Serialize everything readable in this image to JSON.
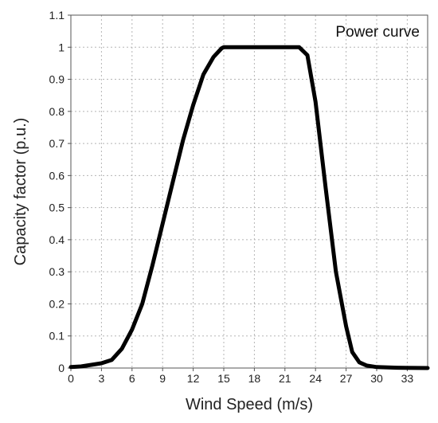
{
  "chart_data": {
    "type": "line",
    "title": "",
    "xlabel": "Wind Speed (m/s)",
    "ylabel": "Capacity factor (p.u.)",
    "xlim": [
      0,
      35
    ],
    "ylim": [
      0,
      1.1
    ],
    "xticks": [
      0,
      3,
      6,
      9,
      12,
      15,
      18,
      21,
      24,
      27,
      30,
      33
    ],
    "yticks": [
      0,
      0.1,
      0.2,
      0.3,
      0.4,
      0.5,
      0.6,
      0.7,
      0.8,
      0.9,
      1,
      1.1
    ],
    "grid": true,
    "legend_position": "top-right",
    "series": [
      {
        "name": "Power curve",
        "color": "#000000",
        "x": [
          0,
          1,
          2,
          3,
          4,
          5,
          6,
          7,
          8,
          9,
          10,
          11,
          12,
          13,
          14,
          14.8,
          15,
          18,
          21,
          22.4,
          23.2,
          24,
          25,
          26,
          27,
          27.6,
          28.3,
          29,
          30,
          32,
          35
        ],
        "y": [
          0.003,
          0.005,
          0.01,
          0.015,
          0.025,
          0.06,
          0.12,
          0.2,
          0.32,
          0.45,
          0.58,
          0.71,
          0.82,
          0.915,
          0.97,
          0.997,
          1.0,
          1.0,
          1.0,
          1.0,
          0.975,
          0.83,
          0.56,
          0.3,
          0.13,
          0.05,
          0.018,
          0.008,
          0.003,
          0.001,
          0.0
        ]
      }
    ]
  }
}
